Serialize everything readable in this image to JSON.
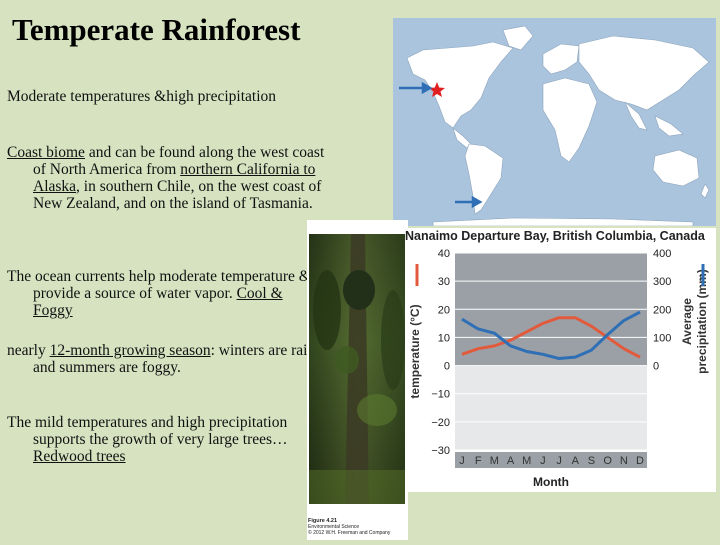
{
  "slide": {
    "title": "Temperate Rainforest",
    "p1": "Moderate temperatures &high precipitation",
    "p2": {
      "u1": "Coast biome",
      "t1": " and can be found along the west coast of North America from ",
      "u2": "northern California to Alaska",
      "t2": ", in southern Chile, on the west coast of New Zealand, and on the island of Tasmania."
    },
    "p3": {
      "t1": "The ocean currents help moderate temperature & provide a source of water vapor. ",
      "u1": "Cool & Foggy"
    },
    "p4": {
      "t1": "nearly ",
      "u1": "12-month growing season",
      "t2": ": winters are rainy and summers are foggy."
    },
    "p5": {
      "t1": "The mild temperatures and high precipitation supports the growth of very large trees…",
      "u1": "Redwood trees"
    }
  },
  "figure": {
    "caption_line1": "Figure 4.21",
    "caption_line2": "Environmental Science",
    "caption_line3": "© 2012 W.H. Freeman and Company"
  },
  "colors": {
    "background": "#d6e2c0",
    "temperature": "#e25a3c",
    "precipitation": "#2f6fb5",
    "map_land": "#ffffff",
    "map_water": "#aac4de",
    "marker": "#e02020"
  },
  "map": {
    "icons": [
      "location-star-icon",
      "arrow-right-icon"
    ]
  },
  "chart_data": {
    "type": "line",
    "title": "Nanaimo Departure Bay, British Columbia, Canada",
    "xlabel": "Month",
    "ylabel_left": "temperature (°C)",
    "ylabel_right": "Average precipitation (mm)",
    "categories": [
      "J",
      "F",
      "M",
      "A",
      "M",
      "J",
      "J",
      "A",
      "S",
      "O",
      "N",
      "D"
    ],
    "ylim_left": [
      -30,
      40
    ],
    "ylim_right": [
      0,
      400
    ],
    "y_ticks_left": [
      "40",
      "30",
      "20",
      "10",
      "0",
      "−10",
      "−20",
      "−30"
    ],
    "y_ticks_right": [
      "400",
      "300",
      "200",
      "100",
      "0"
    ],
    "series": [
      {
        "axis": "left",
        "values": [
          4,
          6,
          7,
          9,
          12,
          15,
          17,
          17,
          14,
          10,
          6,
          3
        ]
      },
      {
        "axis": "right",
        "values": [
          165,
          130,
          115,
          70,
          50,
          40,
          25,
          30,
          55,
          110,
          160,
          190
        ]
      }
    ],
    "grid": true,
    "shaded_region": "above 0°C"
  }
}
